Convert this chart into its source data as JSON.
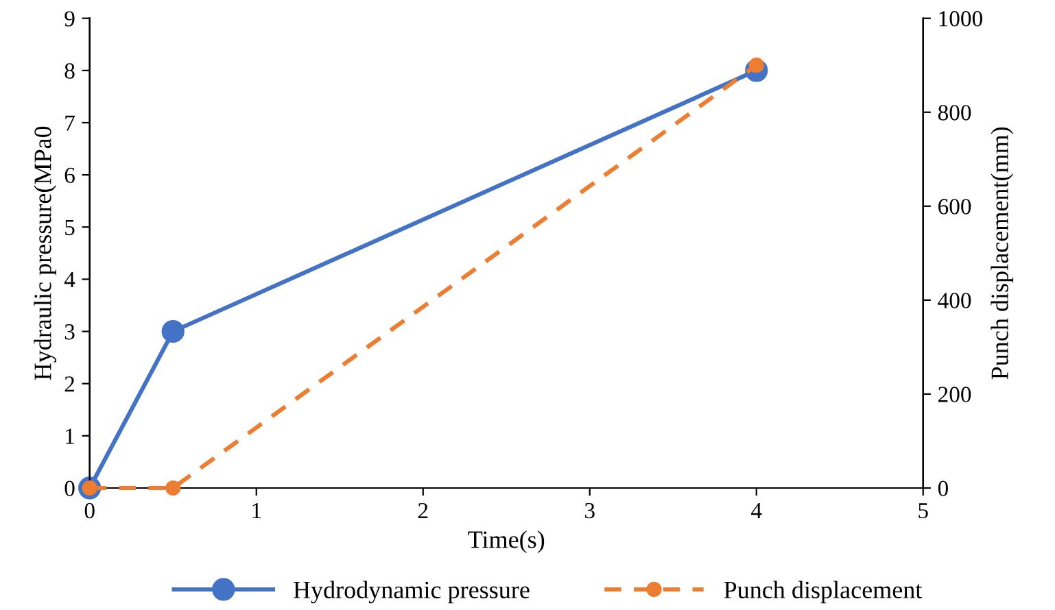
{
  "chart_data": {
    "type": "line",
    "xlabel": "Time(s)",
    "ylabel": "Hydraulic pressure(MPa0",
    "y2label": "Punch displacement(mm)",
    "x": [
      0,
      0.5,
      4
    ],
    "series": [
      {
        "name": "Hydrodynamic pressure",
        "color": "#4472c4",
        "values": [
          0,
          3,
          8
        ],
        "line_style": "solid"
      },
      {
        "name": "Punch displacement",
        "color": "#ed7d31",
        "values": [
          0,
          0,
          900
        ],
        "axis": "y2",
        "line_style": "dashed"
      }
    ],
    "xlim": [
      0,
      5
    ],
    "xticks": [
      0,
      1,
      2,
      3,
      4,
      5
    ],
    "ylim": [
      0,
      9
    ],
    "yticks": [
      0,
      1,
      2,
      3,
      4,
      5,
      6,
      7,
      8,
      9
    ],
    "y2lim": [
      0,
      1000
    ],
    "y2ticks": [
      0,
      200,
      400,
      600,
      800,
      1000
    ],
    "marker": "circle",
    "grid": false,
    "legend": "bottom"
  }
}
